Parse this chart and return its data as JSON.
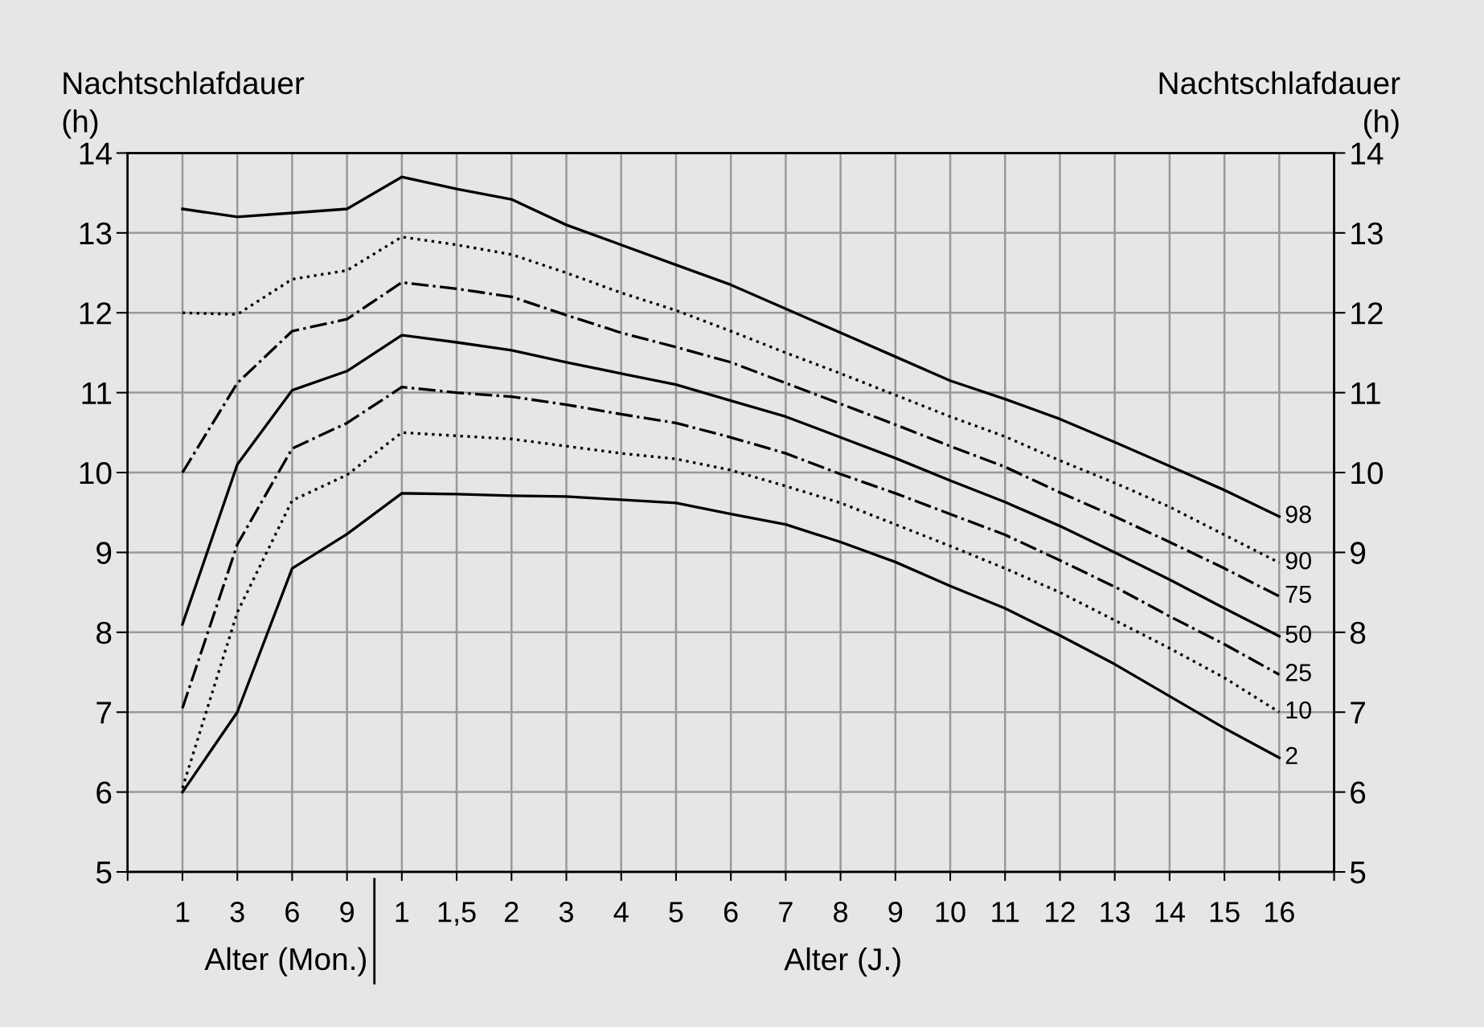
{
  "chart_data": {
    "type": "line",
    "categories": [
      "1",
      "3",
      "6",
      "9",
      "1",
      "1,5",
      "2",
      "3",
      "4",
      "5",
      "6",
      "7",
      "8",
      "9",
      "10",
      "11",
      "12",
      "13",
      "14",
      "15",
      "16"
    ],
    "ylabel": "Nachtschlafdauer\n(h)",
    "y2label": "Nachtschlafdauer\n(h)",
    "xlabel": "Alter (J.)",
    "annotations": [
      "Alter (Mon.)"
    ],
    "ylim": [
      5,
      14
    ],
    "yticks": [
      5,
      6,
      7,
      8,
      9,
      10,
      11,
      12,
      13,
      14
    ],
    "y2lim": [
      5,
      14
    ],
    "y2ticks": [
      5,
      6,
      7,
      8,
      9,
      10,
      11,
      12,
      13,
      14
    ],
    "grid": true,
    "marker": "none",
    "series": [
      {
        "name": "98",
        "color": "#000000",
        "line_style": "solid",
        "values": [
          13.3,
          13.2,
          13.25,
          13.3,
          13.7,
          13.55,
          13.42,
          13.1,
          12.85,
          12.6,
          12.35,
          12.05,
          11.75,
          11.45,
          11.15,
          10.92,
          10.67,
          10.38,
          10.08,
          9.78,
          9.45
        ]
      },
      {
        "name": "90",
        "color": "#000000",
        "line_style": "dotted",
        "values": [
          12.0,
          11.98,
          12.42,
          12.53,
          12.95,
          12.85,
          12.73,
          12.5,
          12.25,
          12.03,
          11.77,
          11.5,
          11.24,
          10.97,
          10.7,
          10.45,
          10.15,
          9.87,
          9.57,
          9.22,
          8.87
        ]
      },
      {
        "name": "75",
        "color": "#000000",
        "line_style": "dashdot",
        "values": [
          10.0,
          11.12,
          11.77,
          11.92,
          12.38,
          12.3,
          12.2,
          11.97,
          11.75,
          11.57,
          11.38,
          11.12,
          10.86,
          10.6,
          10.33,
          10.07,
          9.75,
          9.45,
          9.13,
          8.8,
          8.45
        ]
      },
      {
        "name": "50",
        "color": "#000000",
        "line_style": "solid",
        "values": [
          8.1,
          10.1,
          11.03,
          11.27,
          11.72,
          11.63,
          11.53,
          11.38,
          11.24,
          11.1,
          10.9,
          10.7,
          10.44,
          10.18,
          9.9,
          9.63,
          9.33,
          9.0,
          8.66,
          8.3,
          7.95
        ]
      },
      {
        "name": "25",
        "color": "#000000",
        "line_style": "dashdot",
        "values": [
          7.05,
          9.1,
          10.3,
          10.62,
          11.07,
          11.0,
          10.95,
          10.85,
          10.73,
          10.62,
          10.44,
          10.24,
          9.98,
          9.74,
          9.48,
          9.22,
          8.9,
          8.57,
          8.2,
          7.85,
          7.47
        ]
      },
      {
        "name": "10",
        "color": "#000000",
        "line_style": "dotted",
        "values": [
          6.05,
          8.25,
          9.65,
          9.97,
          10.5,
          10.46,
          10.42,
          10.33,
          10.24,
          10.17,
          10.03,
          9.83,
          9.62,
          9.35,
          9.08,
          8.8,
          8.5,
          8.15,
          7.8,
          7.43,
          7.0
        ]
      },
      {
        "name": "2",
        "color": "#000000",
        "line_style": "solid",
        "values": [
          6.0,
          7.0,
          8.8,
          9.23,
          9.74,
          9.73,
          9.71,
          9.7,
          9.66,
          9.62,
          9.48,
          9.35,
          9.13,
          8.88,
          8.58,
          8.3,
          7.96,
          7.6,
          7.2,
          6.8,
          6.43
        ]
      }
    ]
  }
}
